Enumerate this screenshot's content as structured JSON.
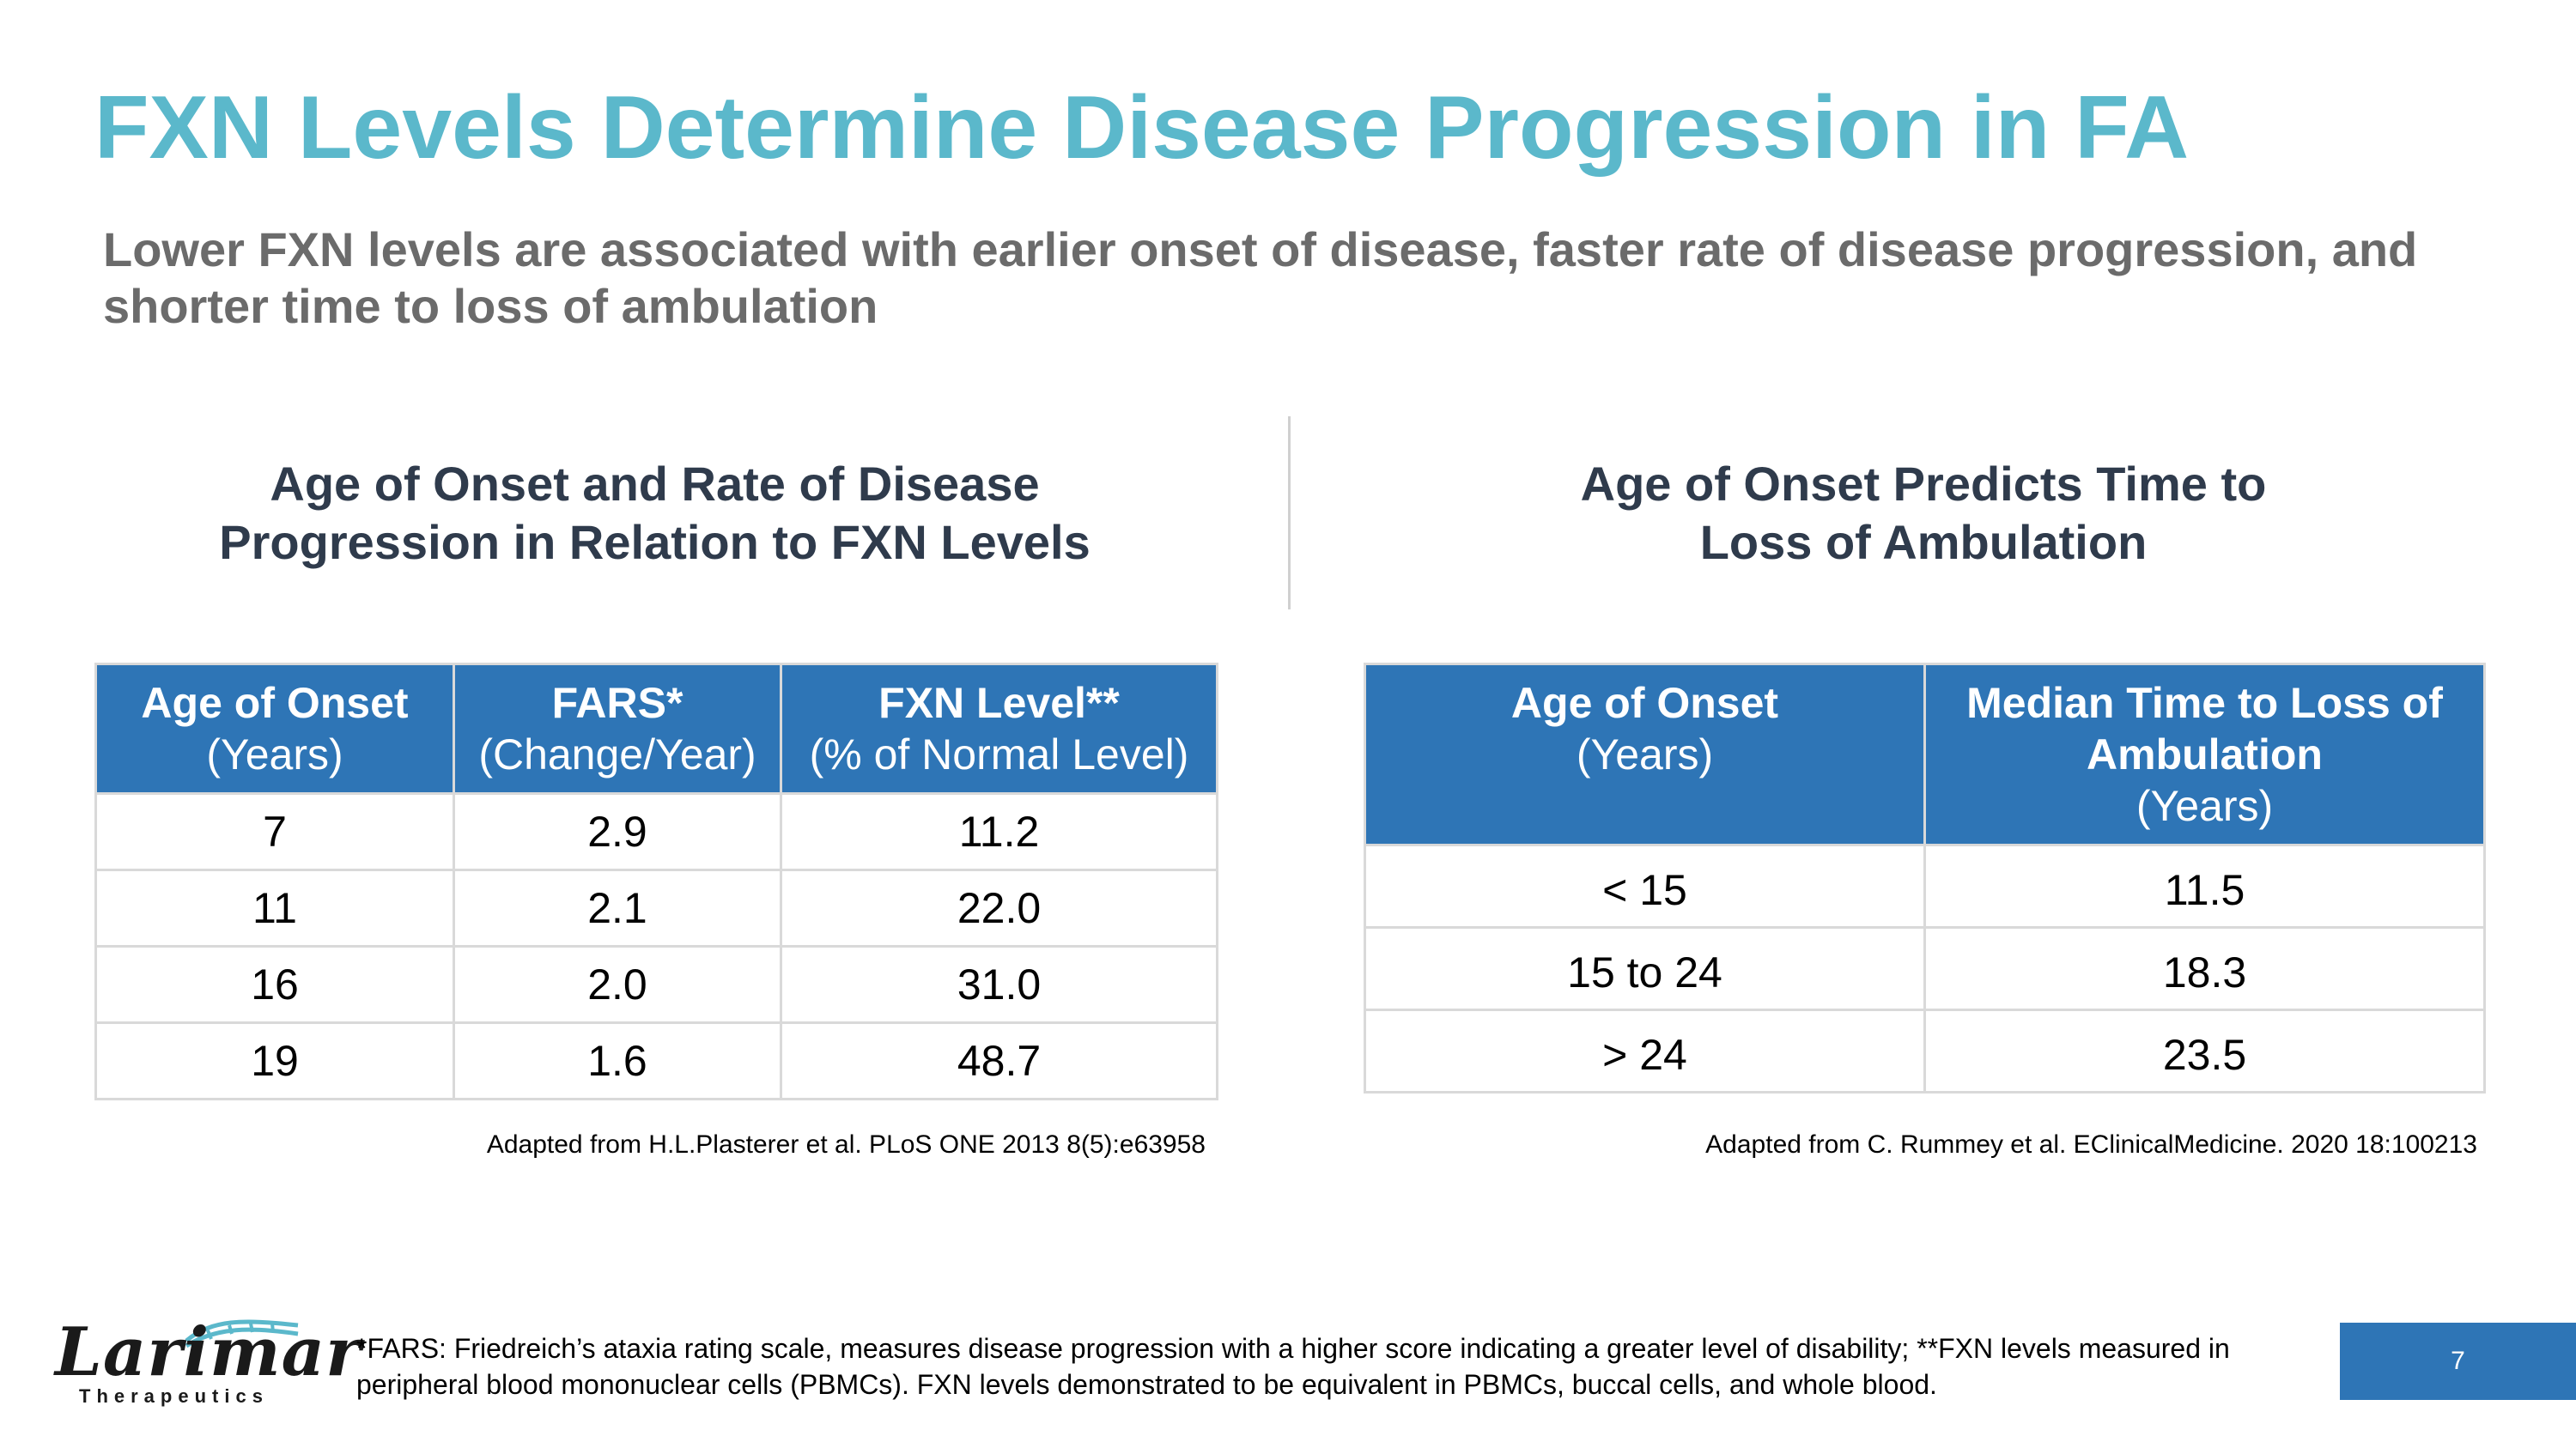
{
  "title": "FXN Levels Determine Disease Progression in FA",
  "subtitle": "Lower FXN levels are associated with earlier onset of disease, faster rate of disease progression, and shorter time to loss of ambulation",
  "left_section": {
    "title_line1": "Age of Onset and Rate of Disease",
    "title_line2": "Progression in Relation to FXN Levels",
    "headers": [
      {
        "bold": "Age of Onset",
        "sub": "(Years)"
      },
      {
        "bold": "FARS*",
        "sub": "(Change/Year)"
      },
      {
        "bold": "FXN Level**",
        "sub": "(% of Normal Level)"
      }
    ],
    "rows": [
      [
        "7",
        "2.9",
        "11.2"
      ],
      [
        "11",
        "2.1",
        "22.0"
      ],
      [
        "16",
        "2.0",
        "31.0"
      ],
      [
        "19",
        "1.6",
        "48.7"
      ]
    ],
    "source": "Adapted from H.L.Plasterer et al. PLoS ONE 2013 8(5):e63958"
  },
  "right_section": {
    "title_line1": "Age of Onset Predicts Time to",
    "title_line2": "Loss of Ambulation",
    "headers": [
      {
        "bold": "Age of Onset",
        "sub": "(Years)"
      },
      {
        "bold": "Median Time to Loss of Ambulation",
        "sub": "(Years)"
      }
    ],
    "rows": [
      [
        "< 15",
        "11.5"
      ],
      [
        "15 to 24",
        "18.3"
      ],
      [
        "> 24",
        "23.5"
      ]
    ],
    "source": "Adapted from C. Rummey et al. EClinicalMedicine. 2020 18:100213"
  },
  "logo": {
    "word": "Larimar",
    "sub": "Therapeutics"
  },
  "footnote": "*FARS: Friedreich’s ataxia rating scale, measures disease progression with a higher score indicating a greater level of disability; **FXN levels measured in peripheral blood mononuclear cells (PBMCs). FXN levels demonstrated to be equivalent in PBMCs, buccal cells, and whole blood.",
  "page_number": "7",
  "colors": {
    "title": "#5bb8cb",
    "header_bg": "#2e75b6",
    "subtitle": "#6b6b6b",
    "section_title": "#2f3b4c"
  }
}
